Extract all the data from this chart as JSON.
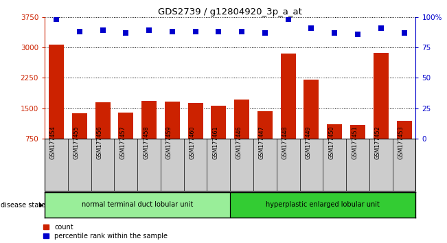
{
  "title": "GDS2739 / g12804920_3p_a_at",
  "samples": [
    "GSM177454",
    "GSM177455",
    "GSM177456",
    "GSM177457",
    "GSM177458",
    "GSM177459",
    "GSM177460",
    "GSM177461",
    "GSM177446",
    "GSM177447",
    "GSM177448",
    "GSM177449",
    "GSM177450",
    "GSM177451",
    "GSM177452",
    "GSM177453"
  ],
  "counts": [
    3060,
    1380,
    1640,
    1390,
    1680,
    1660,
    1630,
    1560,
    1720,
    1430,
    2840,
    2200,
    1100,
    1080,
    2870,
    1180
  ],
  "percentiles": [
    98,
    88,
    89,
    87,
    89,
    88,
    88,
    88,
    88,
    87,
    98,
    91,
    87,
    86,
    91,
    87
  ],
  "group1_label": "normal terminal duct lobular unit",
  "group2_label": "hyperplastic enlarged lobular unit",
  "group1_count": 8,
  "group2_count": 8,
  "bar_color": "#cc2200",
  "dot_color": "#0000cc",
  "left_axis_color": "#cc2200",
  "right_axis_color": "#0000cc",
  "ylim_left": [
    750,
    3750
  ],
  "yticks_left": [
    750,
    1500,
    2250,
    3000,
    3750
  ],
  "ylim_right": [
    0,
    100
  ],
  "yticks_right": [
    0,
    25,
    50,
    75,
    100
  ],
  "group1_color": "#99ee99",
  "group2_color": "#33cc33",
  "bar_width": 0.65,
  "background_color": "#ffffff",
  "label_area_color": "#cccccc"
}
